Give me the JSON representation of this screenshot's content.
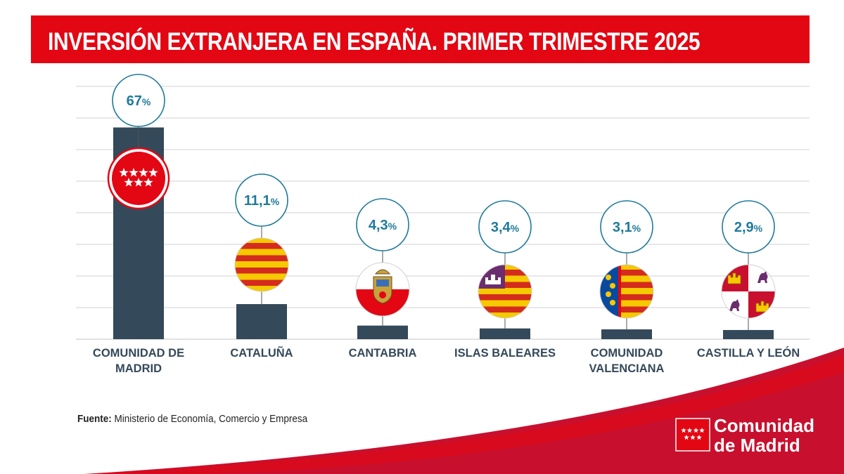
{
  "title": "INVERSIÓN EXTRANJERA EN ESPAÑA. PRIMER TRIMESTRE 2025",
  "source": {
    "label": "Fuente:",
    "text": "Ministerio de Economía, Comercio y Empresa"
  },
  "logo": {
    "line1": "Comunidad",
    "line2": "de Madrid"
  },
  "colors": {
    "bar": "#34495a",
    "accent": "#e30613",
    "value_text": "#1f7a9a",
    "circle_stroke": "#1f7a9a",
    "grid": "#d9d9d9",
    "label": "#34495a"
  },
  "chart_data": {
    "type": "bar",
    "title": "INVERSIÓN EXTRANJERA EN ESPAÑA. PRIMER TRIMESTRE 2025",
    "xlabel": "",
    "ylabel": "",
    "unit": "%",
    "ylim": [
      0,
      80
    ],
    "grid": true,
    "categories": [
      {
        "label": [
          "COMUNIDAD DE",
          "MADRID"
        ],
        "value": 67,
        "display": "67",
        "flag": "madrid-flag"
      },
      {
        "label": [
          "CATALUÑA"
        ],
        "value": 11.1,
        "display": "11,1",
        "flag": "cataluna-flag"
      },
      {
        "label": [
          "CANTABRIA"
        ],
        "value": 4.3,
        "display": "4,3",
        "flag": "cantabria-flag"
      },
      {
        "label": [
          "ISLAS BALEARES"
        ],
        "value": 3.4,
        "display": "3,4",
        "flag": "baleares-flag"
      },
      {
        "label": [
          "COMUNIDAD",
          "VALENCIANA"
        ],
        "value": 3.1,
        "display": "3,1",
        "flag": "valenciana-flag"
      },
      {
        "label": [
          "CASTILLA Y LEÓN"
        ],
        "value": 2.9,
        "display": "2,9",
        "flag": "castilla-leon-flag"
      }
    ]
  }
}
